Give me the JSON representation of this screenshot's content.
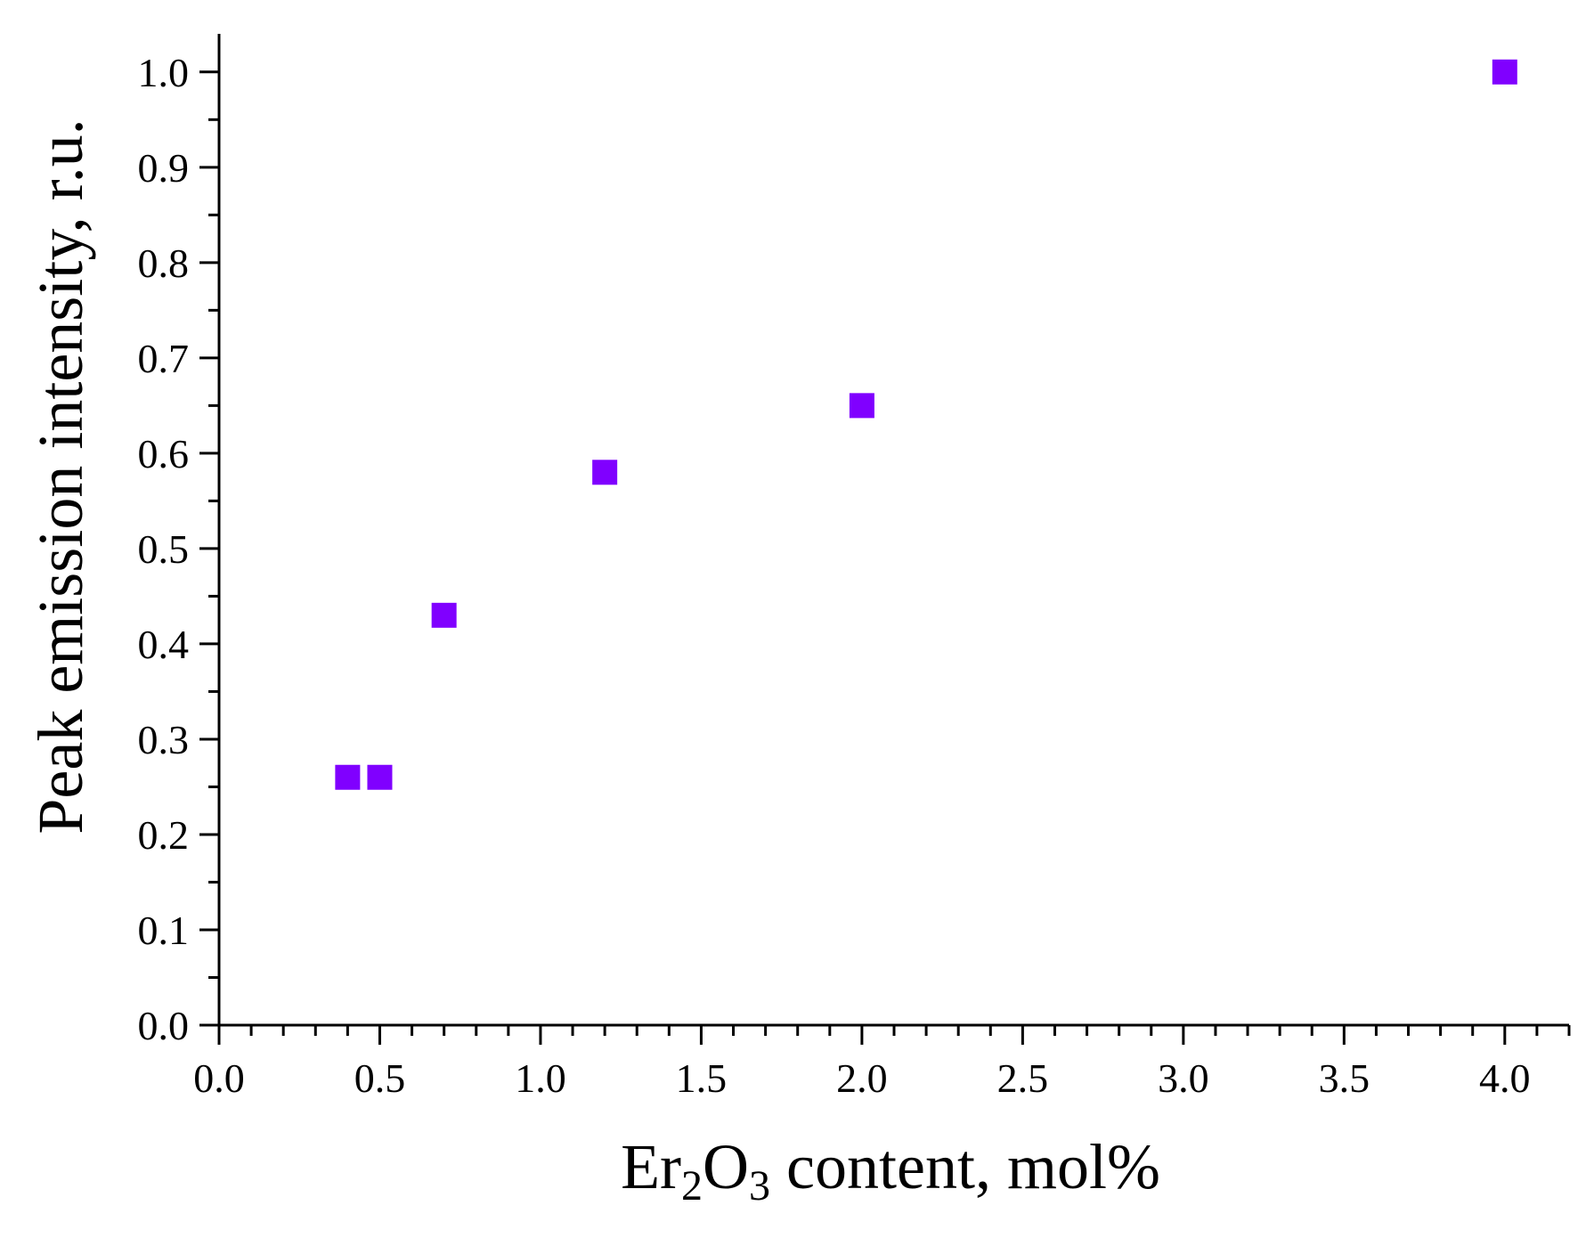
{
  "chart_data": {
    "type": "scatter",
    "title": "",
    "xlabel": {
      "parts": [
        {
          "text": "Er",
          "sub": false
        },
        {
          "text": "2",
          "sub": true
        },
        {
          "text": "O",
          "sub": false
        },
        {
          "text": "3",
          "sub": true
        },
        {
          "text": " content, mol%",
          "sub": false
        }
      ]
    },
    "ylabel": "Peak emission intensity, r.u.",
    "xlim": [
      0.0,
      4.2
    ],
    "ylim": [
      0.0,
      1.04
    ],
    "xticks": [
      0.0,
      0.5,
      1.0,
      1.5,
      2.0,
      2.5,
      3.0,
      3.5,
      4.0
    ],
    "xtick_labels": [
      "0.0",
      "0.5",
      "1.0",
      "1.5",
      "2.0",
      "2.5",
      "3.0",
      "3.5",
      "4.0"
    ],
    "yticks": [
      0.0,
      0.1,
      0.2,
      0.3,
      0.4,
      0.5,
      0.6,
      0.7,
      0.8,
      0.9,
      1.0
    ],
    "ytick_labels": [
      "0.0",
      "0.1",
      "0.2",
      "0.3",
      "0.4",
      "0.5",
      "0.6",
      "0.7",
      "0.8",
      "0.9",
      "1.0"
    ],
    "grid": false,
    "legend": false,
    "marker": "square",
    "marker_color": "#8000ff",
    "axis_color": "#000000",
    "series": [
      {
        "x": [
          0.4,
          0.5,
          0.7,
          1.2,
          2.0,
          4.0
        ],
        "y": [
          0.26,
          0.26,
          0.43,
          0.58,
          0.65,
          1.0
        ]
      }
    ]
  }
}
